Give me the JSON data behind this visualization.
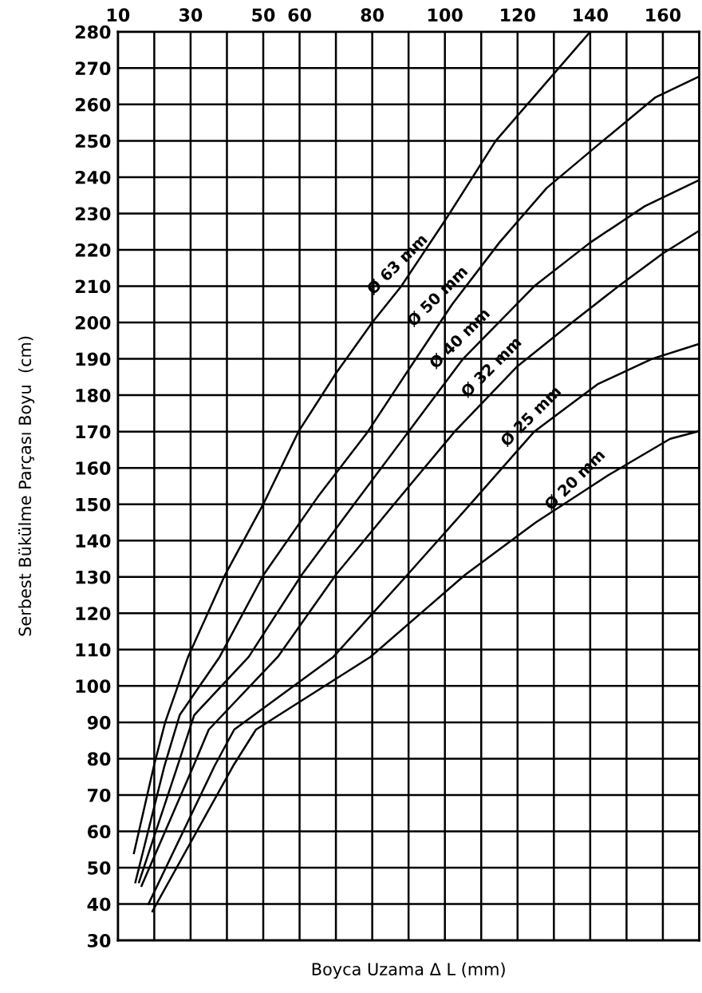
{
  "chart_data": {
    "type": "line",
    "xlabel": "Boyca Uzama Δ L (mm)",
    "ylabel": "Serbest Bükülme Parçası Boyu  (cm)",
    "xlim": [
      10,
      170
    ],
    "ylim": [
      30,
      280
    ],
    "xticks": [
      10,
      {
        "value": 20,
        "label": null
      },
      30,
      {
        "value": 40,
        "label": null
      },
      50,
      60,
      {
        "value": 70,
        "label": null
      },
      80,
      {
        "value": 90,
        "label": null
      },
      100,
      {
        "value": 110,
        "label": null
      },
      120,
      {
        "value": 130,
        "label": null
      },
      140,
      {
        "value": 150,
        "label": null
      },
      160
    ],
    "yticks": [
      30,
      40,
      50,
      60,
      70,
      80,
      90,
      100,
      110,
      120,
      130,
      140,
      150,
      160,
      170,
      180,
      190,
      200,
      210,
      220,
      230,
      240,
      250,
      260,
      270,
      280
    ],
    "grid": true,
    "marker": "none",
    "line_style": "solid",
    "series": [
      {
        "color": "#000000",
        "x": [
          14.4,
          19.9,
          23,
          29.3,
          39.5,
          50,
          59.7,
          70,
          80,
          88,
          100,
          114,
          127,
          140
        ],
        "values": [
          54,
          78,
          90,
          108,
          130.6,
          150,
          170,
          186,
          200,
          210,
          228,
          250,
          265,
          280
        ]
      },
      {
        "color": "#000000",
        "x": [
          14.8,
          22.8,
          27,
          38,
          50.1,
          65,
          78.8,
          90,
          102,
          115,
          128,
          143.5,
          158,
          169.6
        ],
        "values": [
          46,
          78,
          92,
          108,
          130.6,
          152,
          170,
          187,
          205,
          222,
          237,
          250,
          262,
          267.5
        ]
      },
      {
        "color": "#000000",
        "x": [
          15.8,
          26.4,
          31,
          46,
          60.6,
          75,
          90,
          105,
          124.6,
          140,
          155,
          169.6
        ],
        "values": [
          46,
          78,
          92,
          108,
          130.6,
          150,
          170,
          190,
          210,
          222,
          232,
          239
        ]
      },
      {
        "color": "#000000",
        "x": [
          16.5,
          30.8,
          35,
          54,
          70,
          86,
          102.7,
          120,
          135,
          147.8,
          160,
          169.6
        ],
        "values": [
          45,
          78,
          88,
          108,
          130.6,
          150,
          170,
          188,
          200,
          210,
          219,
          225
        ]
      },
      {
        "color": "#000000",
        "x": [
          18.4,
          36.6,
          42,
          69.3,
          89.7,
          107,
          124.6,
          142,
          157,
          169.6
        ],
        "values": [
          40,
          78,
          88,
          108,
          130.6,
          150,
          170,
          183,
          190,
          194
        ]
      },
      {
        "color": "#000000",
        "x": [
          19.5,
          41.7,
          48,
          79.5,
          105.6,
          125,
          145,
          162,
          169.6
        ],
        "values": [
          38,
          78,
          88,
          108,
          130.6,
          145,
          158,
          168,
          170
        ]
      }
    ],
    "annotations": [
      {
        "text": "Ø 63 mm",
        "x": 90.1,
        "y": 212.8
      },
      {
        "text": "Ø 50 mm",
        "x": 101.2,
        "y": 204
      },
      {
        "text": "Ø 40 mm",
        "x": 107.3,
        "y": 192.4
      },
      {
        "text": "Ø 32 mm",
        "x": 116,
        "y": 184.5
      },
      {
        "text": "Ø 25 mm",
        "x": 126.9,
        "y": 171
      },
      {
        "text": "Ø 20 mm",
        "x": 139,
        "y": 153.5
      }
    ]
  }
}
